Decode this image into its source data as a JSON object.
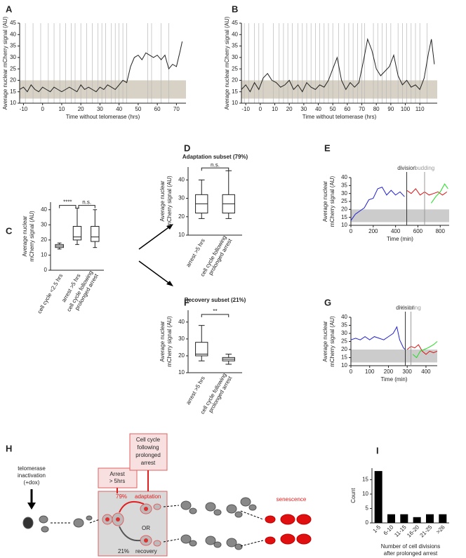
{
  "chart_data": [
    {
      "panel": "A",
      "type": "line",
      "ylabel": [
        "Average nuclear mCherry signal (AU)"
      ],
      "xlabel": [
        "Time without telomerase (hrs)"
      ],
      "xlim": [
        -12,
        75
      ],
      "xticks": [
        -10,
        0,
        10,
        20,
        30,
        40,
        50,
        60,
        70
      ],
      "ylim": [
        10,
        45
      ],
      "yticks": [
        10,
        15,
        20,
        25,
        30,
        35,
        40,
        45
      ],
      "band": [
        12,
        20
      ],
      "band_color": "#d8d2c6",
      "event_color": "#b8b8b8",
      "events": [
        -9,
        -5,
        -1,
        3,
        6,
        9,
        12,
        15,
        17,
        20,
        23,
        26,
        29,
        31,
        33,
        36,
        38,
        40,
        42,
        44,
        55,
        57,
        62,
        66
      ],
      "series": [
        {
          "color": "#222222",
          "x": [
            -12,
            -10,
            -8,
            -6,
            -4,
            -2,
            0,
            2,
            4,
            6,
            8,
            10,
            12,
            14,
            16,
            18,
            20,
            22,
            24,
            26,
            28,
            30,
            32,
            34,
            36,
            38,
            40,
            42,
            44,
            46,
            48,
            50,
            52,
            54,
            56,
            58,
            60,
            62,
            64,
            66,
            68,
            70,
            72,
            73
          ],
          "values": [
            16,
            17,
            15,
            18,
            16,
            15,
            17,
            16,
            15,
            17,
            16,
            15,
            16,
            17,
            16,
            15,
            18,
            16,
            17,
            16,
            15,
            17,
            16,
            18,
            17,
            16,
            18,
            20,
            19,
            26,
            30,
            31,
            29,
            32,
            31,
            30,
            31,
            29,
            31,
            25,
            27,
            26,
            33,
            37
          ]
        }
      ]
    },
    {
      "panel": "B",
      "type": "line",
      "ylabel": [
        "Average nuclear mCherry signal (AU)"
      ],
      "xlabel": [
        "Time without telomerase (hrs)"
      ],
      "xlim": [
        -13,
        122
      ],
      "xticks": [
        -10,
        0,
        10,
        20,
        30,
        40,
        50,
        60,
        70,
        80,
        90,
        100,
        110
      ],
      "ylim": [
        10,
        45
      ],
      "yticks": [
        10,
        15,
        20,
        25,
        30,
        35,
        40,
        45
      ],
      "band": [
        12,
        20
      ],
      "band_color": "#d8d2c6",
      "event_color": "#b8b8b8",
      "events": [
        -11,
        -8,
        -4,
        -1,
        2,
        9,
        13,
        16,
        19,
        22,
        26,
        29,
        32,
        35,
        38,
        41,
        44,
        47,
        50,
        54,
        58,
        61,
        64,
        67,
        70,
        72,
        78,
        81,
        84,
        87,
        90,
        95,
        98,
        101,
        104,
        107,
        110,
        115
      ],
      "series": [
        {
          "color": "#222222",
          "x": [
            -13,
            -10,
            -7,
            -4,
            -1,
            2,
            5,
            8,
            11,
            14,
            17,
            20,
            23,
            26,
            29,
            32,
            35,
            38,
            41,
            44,
            47,
            50,
            53,
            56,
            59,
            62,
            65,
            68,
            71,
            74,
            77,
            80,
            83,
            86,
            89,
            92,
            95,
            98,
            101,
            104,
            107,
            110,
            113,
            116,
            118,
            120
          ],
          "values": [
            16,
            18,
            15,
            19,
            16,
            21,
            23,
            20,
            19,
            17,
            18,
            20,
            16,
            18,
            15,
            19,
            17,
            16,
            18,
            17,
            20,
            25,
            30,
            20,
            16,
            19,
            17,
            19,
            28,
            38,
            33,
            25,
            22,
            24,
            26,
            31,
            22,
            18,
            20,
            17,
            18,
            16,
            21,
            32,
            38,
            27
          ]
        }
      ]
    },
    {
      "panel": "C",
      "type": "box",
      "ylabel": [
        "Average nuclear",
        "mCherry signal (AU)"
      ],
      "ylim": [
        0,
        45
      ],
      "yticks": [
        0,
        10,
        20,
        30,
        40
      ],
      "categories": [
        [
          "cell cycle <2.5 hrs"
        ],
        [
          "arrest >5 hrs"
        ],
        [
          "cell cycle following",
          "prolonged arrest"
        ]
      ],
      "boxes": [
        {
          "min": 14,
          "q1": 15,
          "median": 16,
          "q3": 17,
          "max": 18
        },
        {
          "min": 17,
          "q1": 20,
          "median": 22,
          "q3": 29,
          "max": 41
        },
        {
          "min": 15,
          "q1": 19,
          "median": 22,
          "q3": 29,
          "max": 40
        }
      ],
      "brackets": [
        {
          "label": "****",
          "between": [
            0,
            1
          ]
        },
        {
          "label": "n.s.",
          "between": [
            1,
            2
          ]
        }
      ]
    },
    {
      "panel": "D",
      "type": "box",
      "title": "Adaptation subset (79%)",
      "ylabel": [
        "Average nuclear",
        "mCherry signal (AU)"
      ],
      "ylim": [
        10,
        47
      ],
      "yticks": [
        10,
        20,
        30,
        40
      ],
      "categories": [
        [
          "arrest >5 hrs"
        ],
        [
          "cell cycle following",
          "prolonged arrest"
        ]
      ],
      "boxes": [
        {
          "min": 19,
          "q1": 22,
          "median": 27,
          "q3": 32,
          "max": 40
        },
        {
          "min": 19,
          "q1": 22,
          "median": 27,
          "q3": 32,
          "max": 45
        }
      ],
      "brackets": [
        {
          "label": "n.s.",
          "between": [
            0,
            1
          ]
        }
      ]
    },
    {
      "panel": "E",
      "type": "line",
      "ylabel": [
        "Average nuclear",
        "mCherry signal (AU)"
      ],
      "xlabel": [
        "Time (min)"
      ],
      "xlim": [
        0,
        880
      ],
      "xticks": [
        0,
        200,
        400,
        600,
        800
      ],
      "ylim": [
        10,
        40
      ],
      "yticks": [
        10,
        15,
        20,
        25,
        30,
        35,
        40
      ],
      "band": [
        12,
        20
      ],
      "band_color": "#cccccc",
      "markers": [
        {
          "x": 500,
          "label": "division",
          "color": "#333333"
        },
        {
          "x": 660,
          "label": "budding",
          "color": "#999999"
        }
      ],
      "series": [
        {
          "color": "#2222cc",
          "x": [
            0,
            40,
            80,
            120,
            160,
            200,
            240,
            280,
            320,
            360,
            400,
            440,
            480
          ],
          "values": [
            13,
            17,
            19,
            21,
            26,
            27,
            33,
            34,
            29,
            32,
            29,
            31,
            28
          ]
        },
        {
          "color": "#dd1111",
          "x": [
            500,
            540,
            580,
            620,
            660,
            700,
            740,
            780,
            820,
            860
          ],
          "values": [
            32,
            30,
            33,
            29,
            31,
            29,
            30,
            31,
            29,
            31
          ]
        },
        {
          "color": "#22dd22",
          "x": [
            720,
            760,
            800,
            840,
            870
          ],
          "values": [
            24,
            28,
            31,
            36,
            33
          ]
        }
      ]
    },
    {
      "panel": "F",
      "type": "box",
      "title": "Recovery subset (21%)",
      "ylabel": [
        "Average nuclear",
        "mCherry signal (AU)"
      ],
      "ylim": [
        10,
        47
      ],
      "yticks": [
        10,
        20,
        30,
        40
      ],
      "categories": [
        [
          "arrest >5 hrs"
        ],
        [
          "cell cycle following",
          "prolonged arrest"
        ]
      ],
      "boxes": [
        {
          "min": 17,
          "q1": 20,
          "median": 21,
          "q3": 28,
          "max": 38
        },
        {
          "min": 15,
          "q1": 17,
          "median": 18,
          "q3": 19,
          "max": 21
        }
      ],
      "brackets": [
        {
          "label": "**",
          "between": [
            0,
            1
          ]
        }
      ]
    },
    {
      "panel": "G",
      "type": "line",
      "ylabel": [
        "Average nuclear",
        "mCherry signal (AU)"
      ],
      "xlabel": [
        "Time (min)"
      ],
      "xlim": [
        0,
        460
      ],
      "xticks": [
        0,
        100,
        200,
        300,
        400
      ],
      "ylim": [
        10,
        40
      ],
      "yticks": [
        10,
        15,
        20,
        25,
        30,
        35,
        40
      ],
      "band": [
        12,
        20
      ],
      "band_color": "#cccccc",
      "markers": [
        {
          "x": 290,
          "label": "division",
          "color": "#333333"
        },
        {
          "x": 320,
          "label": "budding",
          "color": "#999999"
        }
      ],
      "series": [
        {
          "color": "#2222cc",
          "x": [
            0,
            25,
            50,
            75,
            100,
            125,
            150,
            175,
            200,
            225,
            245,
            260,
            280,
            290
          ],
          "values": [
            26,
            27,
            26,
            28,
            26,
            28,
            27,
            26,
            28,
            30,
            34,
            26,
            21,
            20
          ]
        },
        {
          "color": "#dd1111",
          "x": [
            300,
            320,
            340,
            360,
            380,
            400,
            420,
            440,
            460
          ],
          "values": [
            20,
            22,
            21,
            23,
            19,
            17,
            19,
            18,
            19
          ]
        },
        {
          "color": "#22dd22",
          "x": [
            330,
            350,
            370,
            390,
            410,
            440,
            460
          ],
          "values": [
            17,
            15,
            19,
            20,
            21,
            23,
            25
          ]
        }
      ]
    },
    {
      "panel": "I",
      "type": "bar",
      "ylabel": [
        "Count"
      ],
      "xlabel": [
        "Number of cell divisions",
        "after prolonged arrest"
      ],
      "categories": [
        "1-5",
        "6-10",
        "11-15",
        "16-20",
        "21-25",
        ">26"
      ],
      "values": [
        18,
        3,
        3,
        2,
        3,
        3
      ],
      "color": "#000000",
      "ylim": [
        0,
        19
      ],
      "yticks": [
        0,
        5,
        10,
        15
      ]
    }
  ],
  "diagram": {
    "panel": "H",
    "telomerase": [
      "telomerase",
      "inactivation",
      "(+dox)"
    ],
    "arrest_box": [
      "Arrest",
      "> 5hrs"
    ],
    "cycle_box": [
      "Cell cycle",
      "following",
      "prolonged",
      "arrest"
    ],
    "adaptation_pct": "79%",
    "adaptation": "adaptation",
    "or": "OR",
    "recovery_pct": "21%",
    "recovery": "recovery",
    "senescence": "senescence"
  }
}
